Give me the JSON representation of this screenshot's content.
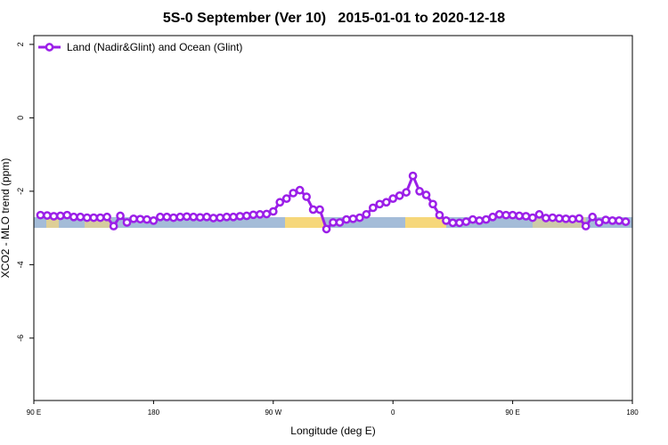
{
  "chart_data": {
    "type": "line",
    "title": "5S-0 September (Ver 10)   2015-01-01 to 2020-12-18",
    "x_label": "Longitude (deg E)",
    "y_label": "XCO2 - MLO trend (ppm)",
    "x": [
      95,
      100,
      105,
      110,
      115,
      120,
      125,
      130,
      135,
      140,
      145,
      150,
      155,
      160,
      165,
      170,
      175,
      180,
      185,
      190,
      195,
      200,
      205,
      210,
      215,
      220,
      225,
      230,
      235,
      240,
      245,
      250,
      255,
      260,
      265,
      270,
      275,
      280,
      285,
      290,
      295,
      300,
      305,
      310,
      315,
      320,
      325,
      330,
      335,
      340,
      345,
      350,
      355,
      360,
      365,
      370,
      375,
      380,
      385,
      390,
      395,
      400,
      405,
      410,
      415,
      420,
      425,
      430,
      435,
      440,
      445,
      450,
      455,
      460,
      465,
      470,
      475,
      480,
      485,
      490,
      495,
      500,
      505,
      510,
      515,
      520,
      525,
      530,
      535
    ],
    "series": [
      {
        "name": "Land (Nadir&Glint) and Ocean (Glint)",
        "color": "#9b1fe8",
        "values": [
          -2.65,
          -2.66,
          -2.68,
          -2.67,
          -2.65,
          -2.7,
          -2.7,
          -2.72,
          -2.72,
          -2.72,
          -2.7,
          -2.95,
          -2.67,
          -2.85,
          -2.75,
          -2.76,
          -2.77,
          -2.8,
          -2.7,
          -2.7,
          -2.72,
          -2.7,
          -2.69,
          -2.7,
          -2.71,
          -2.7,
          -2.73,
          -2.72,
          -2.7,
          -2.7,
          -2.68,
          -2.67,
          -2.64,
          -2.63,
          -2.62,
          -2.55,
          -2.3,
          -2.2,
          -2.05,
          -1.97,
          -2.15,
          -2.5,
          -2.5,
          -3.03,
          -2.85,
          -2.85,
          -2.77,
          -2.75,
          -2.72,
          -2.63,
          -2.45,
          -2.35,
          -2.3,
          -2.2,
          -2.12,
          -2.03,
          -1.58,
          -2.0,
          -2.1,
          -2.35,
          -2.65,
          -2.8,
          -2.86,
          -2.86,
          -2.83,
          -2.77,
          -2.8,
          -2.77,
          -2.7,
          -2.63,
          -2.65,
          -2.65,
          -2.67,
          -2.68,
          -2.72,
          -2.63,
          -2.73,
          -2.72,
          -2.74,
          -2.75,
          -2.76,
          -2.74,
          -2.95,
          -2.7,
          -2.85,
          -2.78,
          -2.8,
          -2.8,
          -2.83
        ]
      }
    ],
    "xlim": [
      90,
      540
    ],
    "xticks": [
      {
        "value": 90,
        "label": "90 E"
      },
      180,
      {
        "value": 270,
        "label": "90 W"
      },
      {
        "value": 360,
        "label": "0"
      },
      {
        "value": 450,
        "label": "90 E"
      },
      {
        "value": 540,
        "label": "180"
      }
    ],
    "ylim": [
      -7.7,
      2.24
    ],
    "yticks": [
      2,
      0,
      -2,
      -4,
      -6
    ],
    "legend": "top-left"
  }
}
